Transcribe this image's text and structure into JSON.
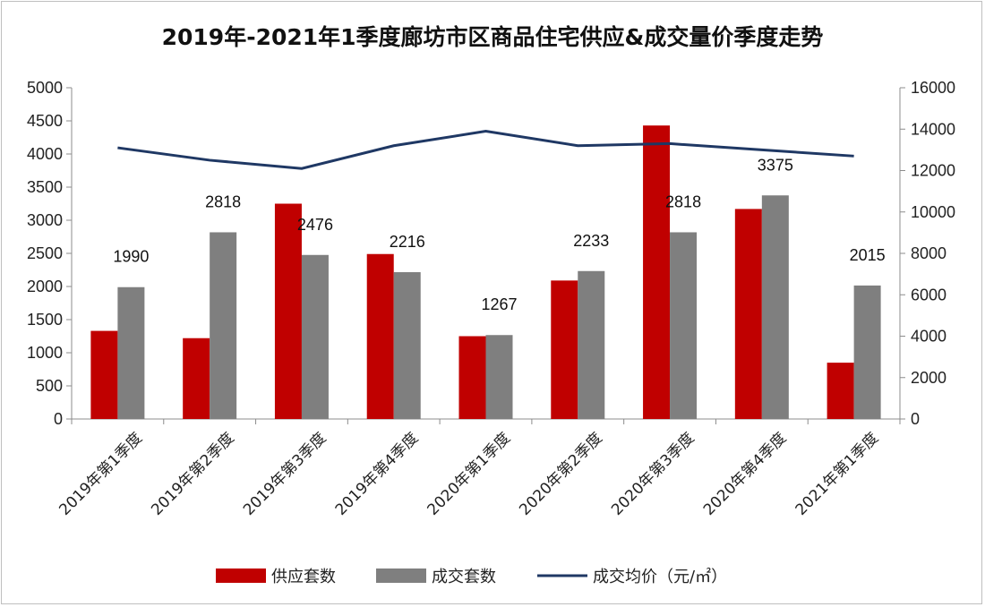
{
  "chart_data": {
    "type": "bar",
    "title": "2019年-2021年1季度廊坊市区商品住宅供应&成交量价季度走势",
    "categories": [
      "2019年第1季度",
      "2019年第2季度",
      "2019年第3季度",
      "2019年第4季度",
      "2020年第1季度",
      "2020年第2季度",
      "2020年第3季度",
      "2020年第4季度",
      "2021年第1季度"
    ],
    "series": [
      {
        "name": "供应套数",
        "type": "bar",
        "axis": "left",
        "color": "#c00000",
        "values": [
          1330,
          1220,
          3250,
          2490,
          1250,
          2090,
          4430,
          3170,
          850
        ]
      },
      {
        "name": "成交套数",
        "type": "bar",
        "axis": "left",
        "color": "#7f7f7f",
        "values": [
          1990,
          2818,
          2476,
          2216,
          1267,
          2233,
          2818,
          3375,
          2015
        ],
        "data_labels": [
          "1990",
          "2818",
          "2476",
          "2216",
          "1267",
          "2233",
          "2818",
          "3375",
          "2015"
        ]
      },
      {
        "name": "成交均价（元/㎡）",
        "type": "line",
        "axis": "right",
        "color": "#1f3864",
        "values": [
          13100,
          12500,
          12100,
          13200,
          13900,
          13200,
          13300,
          13000,
          12700
        ]
      }
    ],
    "ylim": [
      0,
      5000
    ],
    "yticks": [
      "5000",
      "4500",
      "4000",
      "3500",
      "3000",
      "2500",
      "2000",
      "1500",
      "1000",
      "500",
      "0"
    ],
    "y2lim": [
      0,
      16000
    ],
    "y2ticks": [
      "16000",
      "14000",
      "12000",
      "10000",
      "8000",
      "6000",
      "4000",
      "2000",
      "0"
    ],
    "legend_position": "bottom",
    "grid": false
  }
}
